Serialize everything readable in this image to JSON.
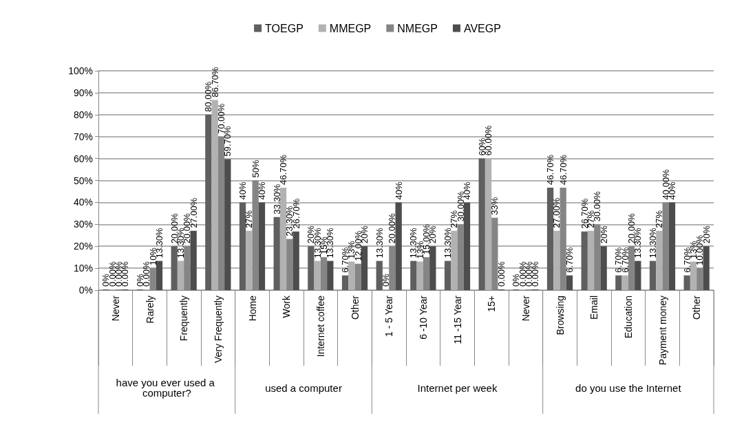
{
  "chart_data": {
    "type": "bar",
    "categories": [
      "Never",
      "Rarely",
      "Frequently",
      "Very Frequently",
      "Home",
      "Work",
      "Internet coffee",
      "Other",
      "1 - 5 Year",
      "6 -10 Year",
      "11 -15 Year",
      "15+",
      "Never",
      "Browsing",
      "Email",
      "Education",
      "Payment money",
      "Other"
    ],
    "series": [
      {
        "name": "TOEGP",
        "color": "#5f5f5f",
        "values": [
          0,
          0,
          20,
          80,
          40,
          33.3,
          20,
          6.7,
          13.3,
          13.3,
          13.3,
          60,
          0,
          46.7,
          26.7,
          6.7,
          13.3,
          6.7
        ],
        "value_labels": [
          "0%",
          "0%",
          "20.00%",
          "80.00%",
          "40%",
          "33.30%",
          "20%",
          "6.70%",
          "13.30%",
          "13.30%",
          "13.30%",
          "60%",
          "0%",
          "46.70%",
          "26.70%",
          "6.70%",
          "13.30%",
          "6.70%"
        ]
      },
      {
        "name": "MMEGP",
        "color": "#b2b2b2",
        "values": [
          0,
          0,
          13.3,
          86.7,
          27,
          46.7,
          13.3,
          13,
          0,
          13,
          27,
          60,
          0,
          27,
          27,
          6.7,
          27,
          13
        ],
        "value_labels": [
          "0.00%",
          "0.00%",
          "13.30%",
          "86.70%",
          "27%",
          "46.70%",
          "13.30%",
          "13%",
          "0%",
          "13%",
          "27%",
          "60.00%",
          "0.00%",
          "27.00%",
          "27%",
          "6.70%",
          "27%",
          "13%"
        ]
      },
      {
        "name": "NMEGP",
        "color": "#858585",
        "values": [
          0,
          10,
          20,
          70,
          50,
          23.3,
          15,
          12,
          20,
          15,
          30,
          33,
          0,
          46.7,
          30,
          20,
          40,
          10
        ],
        "value_labels": [
          "0.00%",
          "10%",
          "20.00%",
          "70.00%",
          "50%",
          "23.30%",
          "15%",
          "12.00%",
          "20.00%",
          "15.00%",
          "30.00%",
          "33%",
          "0.00%",
          "46.70%",
          "30.00%",
          "20.00%",
          "40.00%",
          "10.00%"
        ]
      },
      {
        "name": "AVEGP",
        "color": "#4d4d4d",
        "values": [
          0,
          13.3,
          27,
          59.7,
          40,
          26.7,
          13.3,
          20,
          40,
          20,
          40,
          0,
          0,
          6.7,
          20,
          13.3,
          40,
          20
        ],
        "value_labels": [
          "0.00%",
          "13.30%",
          "27.00%",
          "59.70%",
          "40%",
          "26.70%",
          "13.30%",
          "20%",
          "40%",
          "20%",
          "40%",
          "0.00%",
          "0.00%",
          "6.70%",
          "20%",
          "13.30%",
          "40%",
          "20%"
        ]
      }
    ],
    "ylim": [
      0,
      100
    ],
    "yticks": [
      {
        "value": 0,
        "label": "0%"
      },
      {
        "value": 10,
        "label": "10%"
      },
      {
        "value": 20,
        "label": "20%"
      },
      {
        "value": 30,
        "label": "30%"
      },
      {
        "value": 40,
        "label": "40%"
      },
      {
        "value": 50,
        "label": "50%"
      },
      {
        "value": 60,
        "label": "60%"
      },
      {
        "value": 70,
        "label": "70%"
      },
      {
        "value": 80,
        "label": "80%"
      },
      {
        "value": 90,
        "label": "90%"
      },
      {
        "value": 100,
        "label": "100%"
      }
    ],
    "grid": "y",
    "legend": "top",
    "annotations": [
      "have you ever used a computer?",
      "used a computer",
      "Internet per week",
      "do you use the Internet"
    ]
  }
}
